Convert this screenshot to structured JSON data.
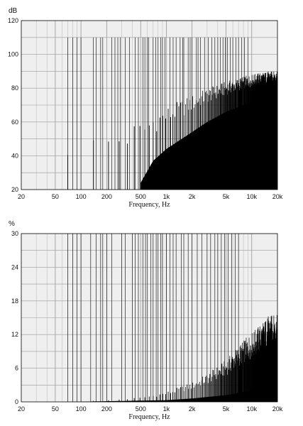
{
  "chart_data": [
    {
      "type": "bar",
      "unit_label": "dB",
      "xlabel": "Frequency, Hz",
      "xscale": "log",
      "xlim": [
        20,
        20000
      ],
      "ylim": [
        20,
        120
      ],
      "x_ticks": [
        20,
        50,
        100,
        200,
        500,
        1000,
        2000,
        5000,
        10000,
        20000
      ],
      "x_tick_labels": [
        "20",
        "50",
        "100",
        "200",
        "500",
        "1k",
        "2k",
        "5k",
        "10k",
        "20k"
      ],
      "y_ticks": [
        20,
        40,
        60,
        80,
        100,
        120
      ],
      "y_tick_labels": [
        "20",
        "40",
        "60",
        "80",
        "100",
        "120"
      ],
      "grid": true,
      "series_color": "#000000",
      "harmonic_fundamental_hz": 70,
      "peak_envelope_db": [
        [
          70,
          50
        ],
        [
          100,
          51
        ],
        [
          200,
          54
        ],
        [
          300,
          57
        ],
        [
          500,
          62
        ],
        [
          700,
          66
        ],
        [
          1000,
          69
        ],
        [
          2000,
          76
        ],
        [
          3000,
          80
        ],
        [
          5000,
          84
        ],
        [
          8000,
          87
        ],
        [
          12000,
          89
        ],
        [
          16000,
          90
        ]
      ],
      "floor_envelope_db": [
        [
          500,
          24
        ],
        [
          700,
          37
        ],
        [
          1000,
          44
        ],
        [
          2000,
          54
        ],
        [
          3000,
          60
        ],
        [
          5000,
          66
        ],
        [
          8000,
          70
        ],
        [
          12000,
          73
        ],
        [
          16000,
          74
        ]
      ],
      "marker_lines": {
        "top_value": 110,
        "freqs": [
          70,
          80,
          90,
          100,
          140,
          150,
          170,
          180,
          230,
          250,
          270,
          290,
          330,
          370,
          430,
          470,
          530,
          560,
          600,
          620,
          700,
          750,
          800,
          860,
          900,
          960,
          1100,
          1200,
          1300,
          1450,
          1550,
          1600,
          1800,
          1900,
          2000,
          2250,
          2350,
          2500,
          2800,
          3100,
          3400,
          3700,
          4000,
          4300,
          4600,
          4900,
          5200,
          5600,
          6000,
          6500,
          7000,
          7600,
          8200,
          9000
        ]
      }
    },
    {
      "type": "bar",
      "unit_label": "%",
      "xlabel": "Frequency, Hz",
      "xscale": "log",
      "xlim": [
        20,
        20000
      ],
      "ylim": [
        0,
        30
      ],
      "x_ticks": [
        20,
        50,
        100,
        200,
        500,
        1000,
        2000,
        5000,
        10000,
        20000
      ],
      "x_tick_labels": [
        "20",
        "50",
        "100",
        "200",
        "500",
        "1k",
        "2k",
        "5k",
        "10k",
        "20k"
      ],
      "y_ticks": [
        0,
        6,
        12,
        18,
        24,
        30
      ],
      "y_tick_labels": [
        "0",
        "6",
        "12",
        "18",
        "24",
        "30"
      ],
      "grid": true,
      "series_color": "#000000",
      "harmonic_fundamental_hz": 70,
      "peak_envelope_pct": [
        [
          70,
          0
        ],
        [
          200,
          0.3
        ],
        [
          500,
          0.8
        ],
        [
          1000,
          1.8
        ],
        [
          2000,
          3.5
        ],
        [
          3000,
          5
        ],
        [
          5000,
          7.5
        ],
        [
          8000,
          11
        ],
        [
          12000,
          13.5
        ],
        [
          16000,
          15.5
        ]
      ],
      "floor_envelope_pct": [
        [
          70,
          0
        ],
        [
          1000,
          0.3
        ],
        [
          2000,
          0.6
        ],
        [
          5000,
          1.2
        ],
        [
          10000,
          2
        ],
        [
          16000,
          2.5
        ]
      ],
      "marker_lines": {
        "top_value": 30,
        "freqs": [
          70,
          80,
          90,
          100,
          130,
          150,
          170,
          180,
          200,
          230,
          300,
          330,
          400,
          430,
          470,
          530,
          570,
          600,
          660,
          700,
          760,
          800,
          860,
          900,
          1000,
          1100,
          1200,
          1300,
          1500,
          1600,
          1800,
          2000,
          2300,
          2600,
          3000,
          3300,
          3700,
          4000,
          4400,
          4800,
          5300,
          5800,
          6400,
          7000
        ]
      }
    }
  ]
}
